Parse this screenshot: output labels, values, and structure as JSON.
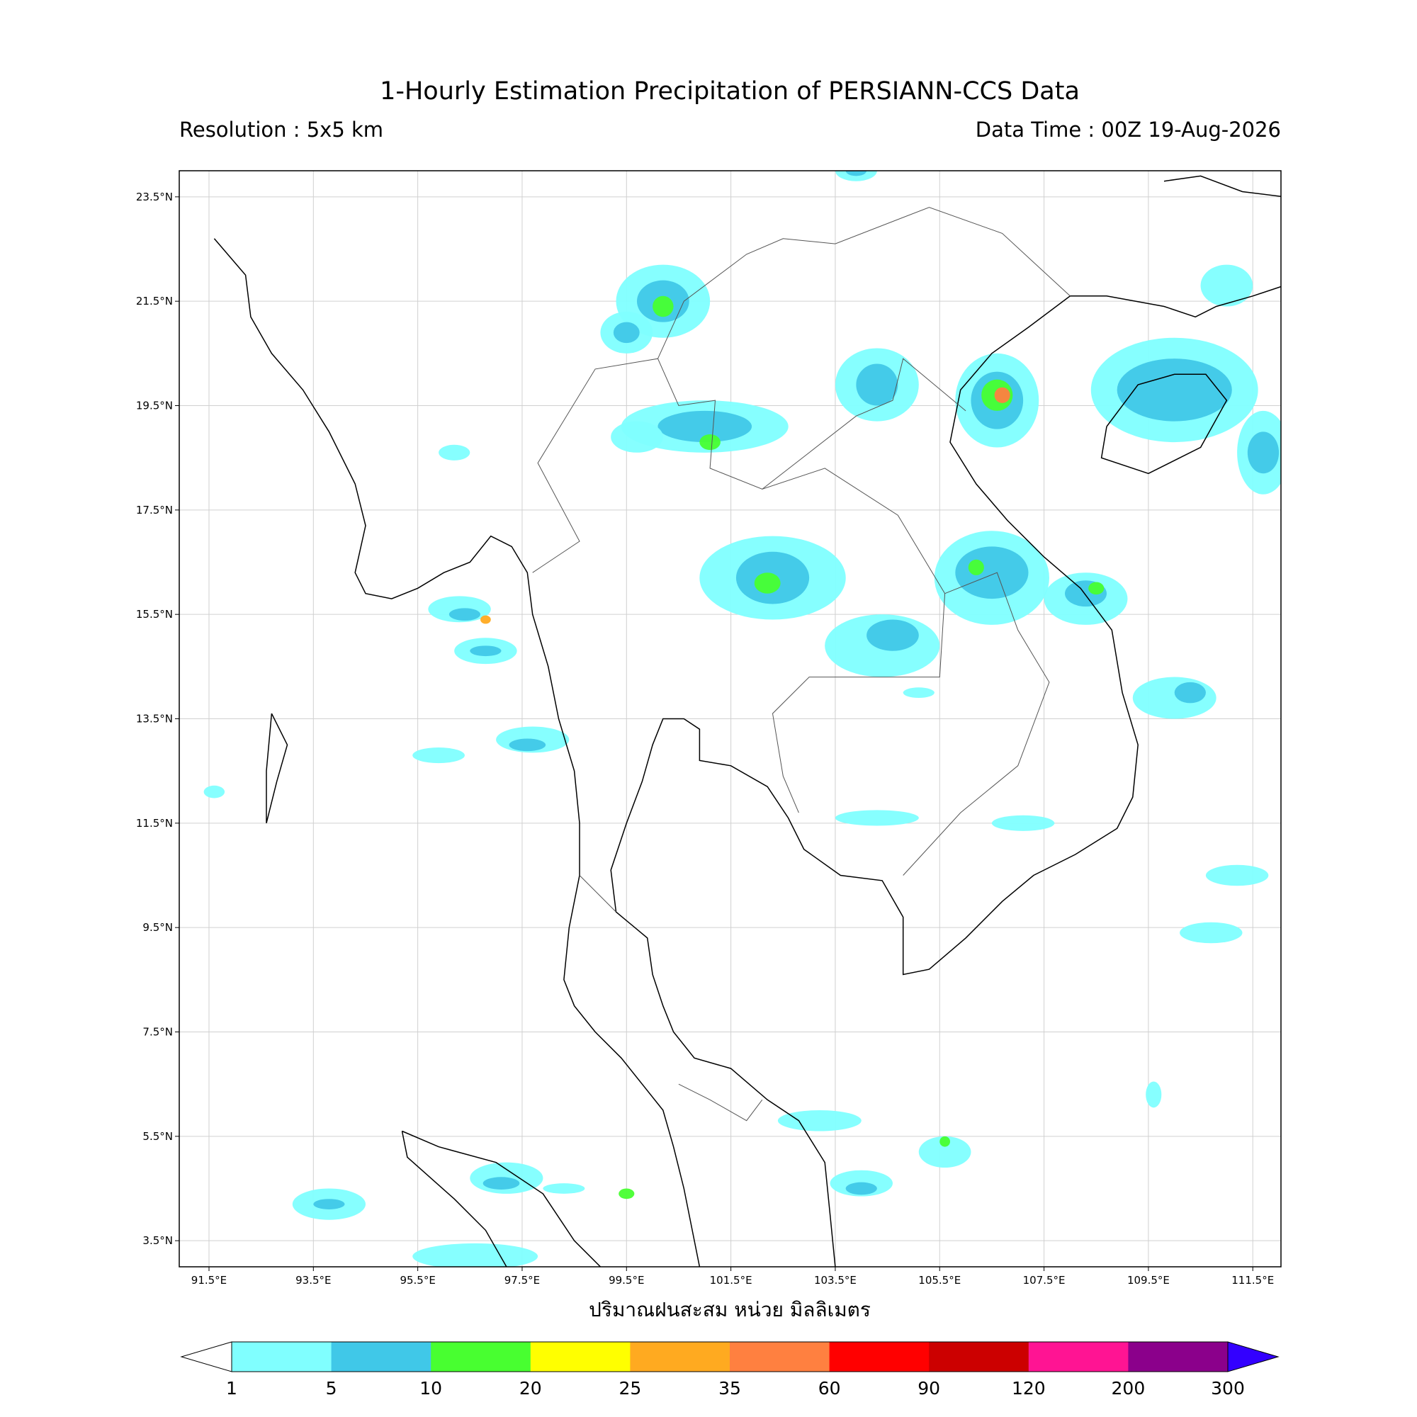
{
  "map": {
    "title": "1-Hourly Estimation Precipitation of PERSIANN-CCS Data",
    "resolution": "Resolution : 5x5 km",
    "data_time": "Data Time : 00Z 19-Aug-2026",
    "xlabel": "ปริมาณฝนสะสม หน่วย มิลลิเมตร",
    "xlim": [
      90.93,
      112.04
    ],
    "ylim": [
      3.0,
      24.0
    ],
    "xticks": [
      {
        "value": 91.5,
        "label": "91.5°E"
      },
      {
        "value": 93.5,
        "label": "93.5°E"
      },
      {
        "value": 95.5,
        "label": "95.5°E"
      },
      {
        "value": 97.5,
        "label": "97.5°E"
      },
      {
        "value": 99.5,
        "label": "99.5°E"
      },
      {
        "value": 101.5,
        "label": "101.5°E"
      },
      {
        "value": 103.5,
        "label": "103.5°E"
      },
      {
        "value": 105.5,
        "label": "105.5°E"
      },
      {
        "value": 107.5,
        "label": "107.5°E"
      },
      {
        "value": 109.5,
        "label": "109.5°E"
      },
      {
        "value": 111.5,
        "label": "111.5°E"
      }
    ],
    "yticks": [
      {
        "value": 3.5,
        "label": "3.5°N"
      },
      {
        "value": 5.5,
        "label": "5.5°N"
      },
      {
        "value": 7.5,
        "label": "7.5°N"
      },
      {
        "value": 9.5,
        "label": "9.5°N"
      },
      {
        "value": 11.5,
        "label": "11.5°N"
      },
      {
        "value": 13.5,
        "label": "13.5°N"
      },
      {
        "value": 15.5,
        "label": "15.5°N"
      },
      {
        "value": 17.5,
        "label": "17.5°N"
      },
      {
        "value": 19.5,
        "label": "19.5°N"
      },
      {
        "value": 21.5,
        "label": "21.5°N"
      },
      {
        "value": 23.5,
        "label": "23.5°N"
      }
    ],
    "grid": true,
    "colorbar": {
      "levels": [
        1,
        5,
        10,
        20,
        25,
        35,
        60,
        90,
        120,
        200,
        300
      ],
      "colors": [
        "#80ffff",
        "#40c8e8",
        "#48ff30",
        "#ffff00",
        "#ffaa20",
        "#ff8040",
        "#ff0000",
        "#cc0000",
        "#ff1493",
        "#8b008b"
      ],
      "over_color": "#3300ff"
    }
  }
}
